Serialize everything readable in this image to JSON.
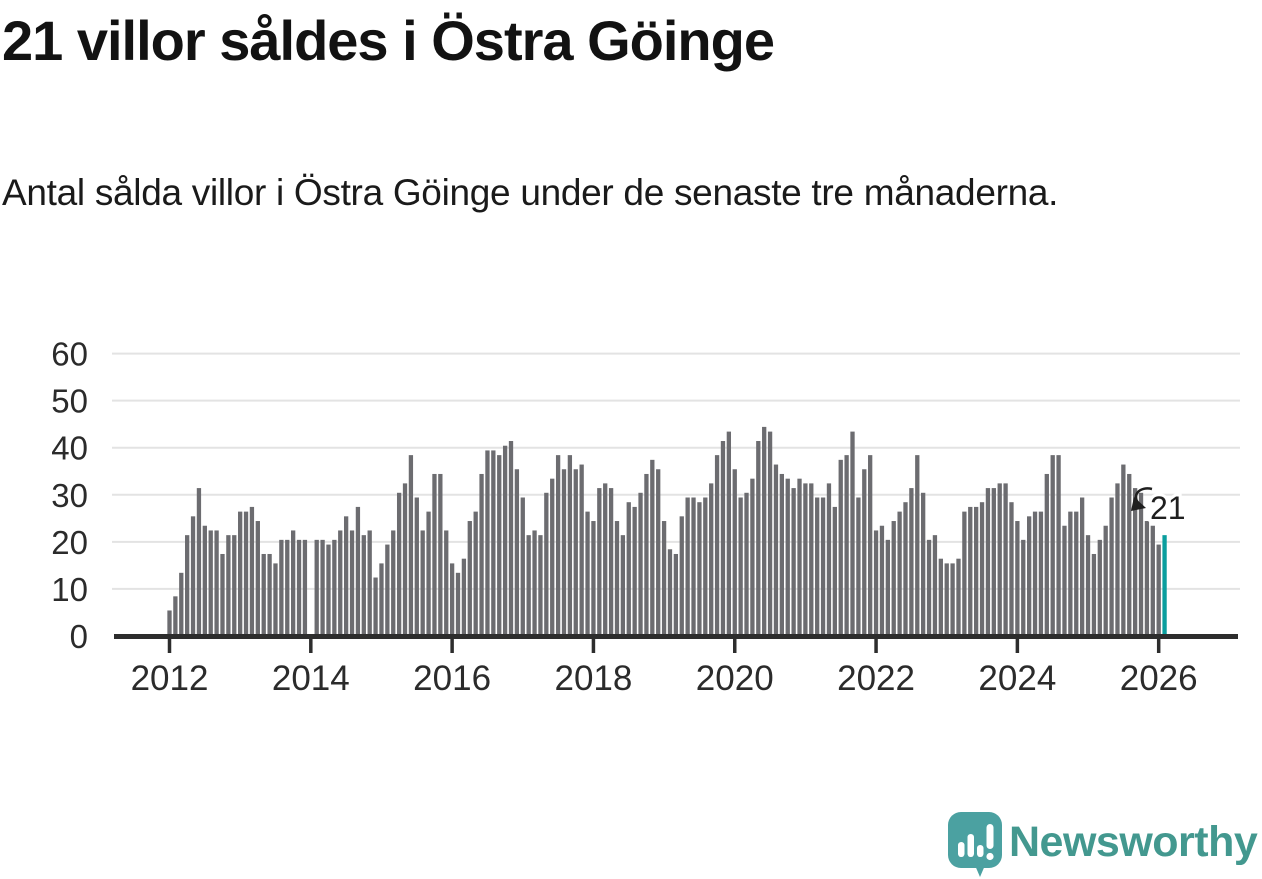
{
  "header": {
    "title": "21 villor såldes i Östra Göinge",
    "subtitle": "Antal sålda villor i Östra Göinge under de senaste tre månaderna."
  },
  "annotation": {
    "value_label": "21"
  },
  "branding": {
    "name": "Newsworthy"
  },
  "colors": {
    "bar": "#6c6c70",
    "highlight": "#0a9e9e",
    "grid": "#e3e3e3",
    "axis": "#2d2d2d",
    "tick_text": "#2b2b2b",
    "annotation_text": "#1f1f1f",
    "logo_bubble": "#4ba1a1",
    "logo_text": "#43988f"
  },
  "chart_data": {
    "type": "bar",
    "title": "21 villor såldes i Östra Göinge",
    "subtitle": "Antal sålda villor i Östra Göinge under de senaste tre månaderna.",
    "frequency": "monthly",
    "x_start": "2012-01",
    "x_end": "2026-02",
    "x_tick_labels": [
      "2012",
      "2014",
      "2016",
      "2018",
      "2020",
      "2022",
      "2024",
      "2026"
    ],
    "y_ticks": [
      0,
      10,
      20,
      30,
      40,
      50,
      60
    ],
    "ylim": [
      0,
      63
    ],
    "grid": true,
    "highlight_last_bar": true,
    "last_value_label": "21",
    "missing_value_note": "2014-01 has no bar (missing value)",
    "values": [
      5,
      8,
      13,
      21,
      25,
      31,
      23,
      22,
      22,
      17,
      21,
      21,
      26,
      26,
      27,
      24,
      17,
      17,
      15,
      20,
      20,
      22,
      20,
      20,
      null,
      20,
      20,
      19,
      20,
      22,
      25,
      22,
      27,
      21,
      22,
      12,
      15,
      19,
      22,
      30,
      32,
      38,
      29,
      22,
      26,
      34,
      34,
      22,
      15,
      13,
      16,
      24,
      26,
      34,
      39,
      39,
      38,
      40,
      41,
      35,
      29,
      21,
      22,
      21,
      30,
      33,
      38,
      35,
      38,
      35,
      36,
      26,
      24,
      31,
      32,
      31,
      24,
      21,
      28,
      27,
      30,
      34,
      37,
      35,
      24,
      18,
      17,
      25,
      29,
      29,
      28,
      29,
      32,
      38,
      41,
      43,
      35,
      29,
      30,
      33,
      41,
      44,
      43,
      36,
      34,
      33,
      31,
      33,
      32,
      32,
      29,
      29,
      32,
      27,
      37,
      38,
      43,
      29,
      35,
      38,
      22,
      23,
      20,
      24,
      26,
      28,
      31,
      38,
      30,
      20,
      21,
      16,
      15,
      15,
      16,
      26,
      27,
      27,
      28,
      31,
      31,
      32,
      32,
      28,
      24,
      20,
      25,
      26,
      26,
      34,
      38,
      38,
      23,
      26,
      26,
      29,
      21,
      17,
      20,
      23,
      29,
      32,
      36,
      34,
      31,
      30,
      24,
      23,
      19,
      21
    ]
  }
}
